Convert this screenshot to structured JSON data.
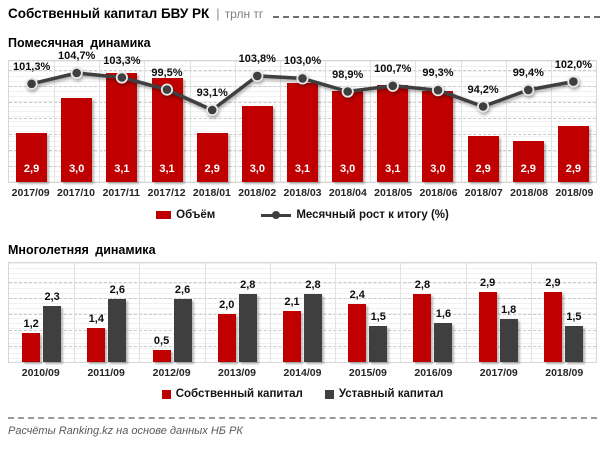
{
  "title": {
    "text": "Собственный капитал БВУ РК",
    "separator": "|",
    "unit": "трлн тг"
  },
  "colors": {
    "red": "#C00000",
    "dark": "#3F3F3F",
    "grid_fine": "#F1F1F1",
    "grid_dash": "#C9C9C9",
    "axis_text": "#262626"
  },
  "chart_data": [
    {
      "type": "bar+line",
      "title": "Помесячная динамика",
      "categories": [
        "2017/09",
        "2017/10",
        "2017/11",
        "2017/12",
        "2018/01",
        "2018/02",
        "2018/03",
        "2018/04",
        "2018/05",
        "2018/06",
        "2018/07",
        "2018/08",
        "2018/09"
      ],
      "series": [
        {
          "name": "Объём",
          "type": "bar",
          "color": "#C00000",
          "values": [
            2.9,
            3.0,
            3.1,
            3.1,
            2.9,
            3.0,
            3.1,
            3.0,
            3.1,
            3.0,
            2.9,
            2.9,
            2.9
          ],
          "labels": [
            "2,9",
            "3,0",
            "3,1",
            "3,1",
            "2,9",
            "3,0",
            "3,1",
            "3,0",
            "3,1",
            "3,0",
            "2,9",
            "2,9",
            "2,9"
          ],
          "values_unrounded_est": [
            2.9,
            3.04,
            3.14,
            3.12,
            2.9,
            3.01,
            3.1,
            3.07,
            3.09,
            3.07,
            2.89,
            2.87,
            2.93
          ]
        },
        {
          "name": "Месячный рост к итогу (%)",
          "type": "line",
          "color": "#3F3F3F",
          "values": [
            101.3,
            104.7,
            103.3,
            99.5,
            93.1,
            103.8,
            103.0,
            98.9,
            100.7,
            99.3,
            94.2,
            99.4,
            102.0
          ],
          "labels": [
            "101,3%",
            "104,7%",
            "103,3%",
            "99,5%",
            "93,1%",
            "103,8%",
            "103,0%",
            "98,9%",
            "100,7%",
            "99,3%",
            "94,2%",
            "99,4%",
            "102,0%"
          ]
        }
      ],
      "bar_axis_est": [
        2.7,
        3.2
      ],
      "grid": true,
      "legend_position": "bottom"
    },
    {
      "type": "bar",
      "title": "Многолетняя динамика",
      "categories": [
        "2010/09",
        "2011/09",
        "2012/09",
        "2013/09",
        "2014/09",
        "2015/09",
        "2016/09",
        "2017/09",
        "2018/09"
      ],
      "series": [
        {
          "name": "Собственный капитал",
          "color": "#C00000",
          "values": [
            1.2,
            1.4,
            0.5,
            2.0,
            2.1,
            2.4,
            2.8,
            2.9,
            2.9
          ],
          "labels": [
            "1,2",
            "1,4",
            "0,5",
            "2,0",
            "2,1",
            "2,4",
            "2,8",
            "2,9",
            "2,9"
          ]
        },
        {
          "name": "Уставный капитал",
          "color": "#3F3F3F",
          "values": [
            2.3,
            2.6,
            2.6,
            2.8,
            2.8,
            1.5,
            1.6,
            1.8,
            1.5
          ],
          "labels": [
            "2,3",
            "2,6",
            "2,6",
            "2,8",
            "2,8",
            "1,5",
            "1,6",
            "1,8",
            "1,5"
          ]
        }
      ],
      "ylim": [
        0,
        4
      ],
      "grid": true,
      "legend_position": "bottom"
    }
  ],
  "footer": {
    "source": "Расчёты Ranking.kz на основе данных НБ РК"
  }
}
